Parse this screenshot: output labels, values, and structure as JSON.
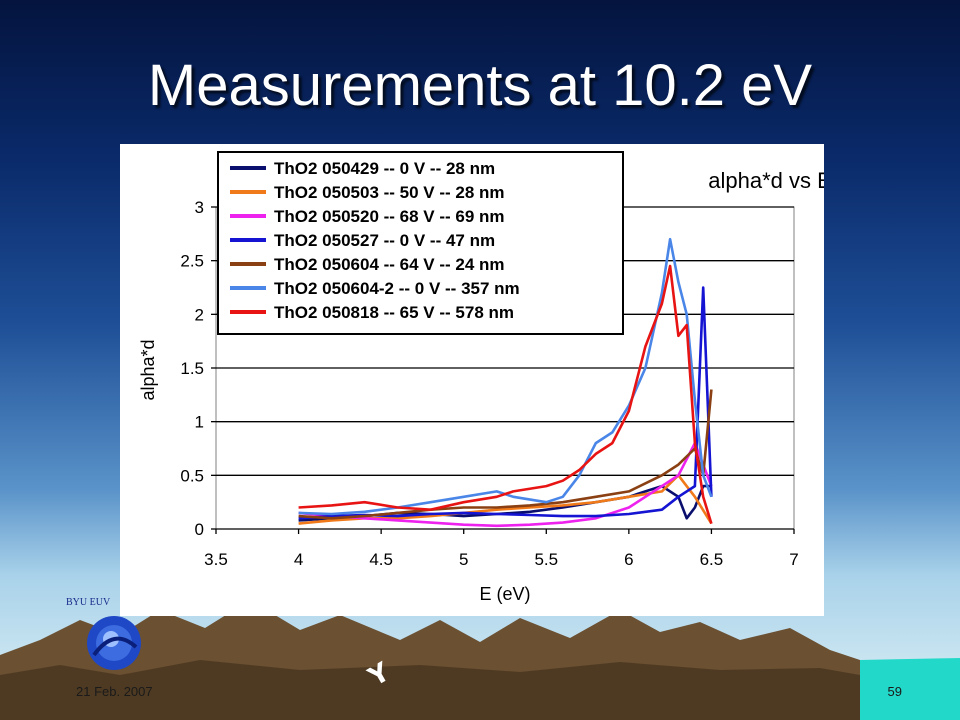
{
  "slide": {
    "title": "Measurements at 10.2 eV",
    "date": "21 Feb. 2007",
    "page_number": "59",
    "logo_text": "BYU EUV"
  },
  "chart_data": {
    "type": "line",
    "title": "alpha*d vs E",
    "xlabel": "E (eV)",
    "ylabel": "alpha*d",
    "xlim": [
      3.5,
      7
    ],
    "ylim": [
      0,
      3
    ],
    "xticks": [
      "3.5",
      "4",
      "4.5",
      "5",
      "5.5",
      "6",
      "6.5",
      "7"
    ],
    "yticks": [
      "0",
      "0.5",
      "1",
      "1.5",
      "2",
      "2.5",
      "3"
    ],
    "grid": "horizontal",
    "legend_placement": "top-left",
    "series": [
      {
        "name": "ThO2 050429 -- 0 V -- 28 nm",
        "color": "#0a0f6e",
        "x": [
          4.0,
          4.2,
          4.4,
          4.6,
          4.8,
          5.0,
          5.2,
          5.4,
          5.6,
          5.8,
          6.0,
          6.1,
          6.2,
          6.3,
          6.35,
          6.4,
          6.45,
          6.5
        ],
        "y": [
          0.08,
          0.1,
          0.12,
          0.15,
          0.14,
          0.12,
          0.14,
          0.16,
          0.2,
          0.25,
          0.3,
          0.35,
          0.4,
          0.3,
          0.1,
          0.2,
          0.4,
          0.4
        ]
      },
      {
        "name": "ThO2 050503 -- 50 V -- 28 nm",
        "color": "#f07a1a",
        "x": [
          4.0,
          4.2,
          4.4,
          4.6,
          4.8,
          5.0,
          5.2,
          5.4,
          5.6,
          5.8,
          6.0,
          6.2,
          6.3,
          6.4,
          6.5
        ],
        "y": [
          0.05,
          0.08,
          0.1,
          0.1,
          0.12,
          0.15,
          0.18,
          0.2,
          0.22,
          0.25,
          0.3,
          0.35,
          0.5,
          0.3,
          0.05
        ]
      },
      {
        "name": "ThO2 050520 -- 68 V -- 69 nm",
        "color": "#ee22ee",
        "x": [
          4.0,
          4.2,
          4.4,
          4.6,
          4.8,
          5.0,
          5.2,
          5.4,
          5.6,
          5.8,
          6.0,
          6.1,
          6.2,
          6.3,
          6.4,
          6.5
        ],
        "y": [
          0.15,
          0.12,
          0.1,
          0.08,
          0.06,
          0.04,
          0.03,
          0.04,
          0.06,
          0.1,
          0.2,
          0.3,
          0.4,
          0.5,
          0.8,
          0.4
        ]
      },
      {
        "name": "ThO2 050527 -- 0 V -- 47 nm",
        "color": "#1414d2",
        "x": [
          4.0,
          4.2,
          4.4,
          4.6,
          4.8,
          5.0,
          5.2,
          5.4,
          5.6,
          5.8,
          6.0,
          6.2,
          6.3,
          6.4,
          6.45,
          6.5
        ],
        "y": [
          0.1,
          0.12,
          0.13,
          0.12,
          0.14,
          0.15,
          0.14,
          0.13,
          0.12,
          0.12,
          0.14,
          0.18,
          0.3,
          0.4,
          2.25,
          0.3
        ]
      },
      {
        "name": "ThO2 050604 -- 64 V -- 24 nm",
        "color": "#8a4012",
        "x": [
          4.0,
          4.2,
          4.4,
          4.6,
          4.8,
          5.0,
          5.2,
          5.4,
          5.6,
          5.8,
          6.0,
          6.2,
          6.3,
          6.4,
          6.45,
          6.5
        ],
        "y": [
          0.12,
          0.1,
          0.12,
          0.15,
          0.18,
          0.2,
          0.2,
          0.22,
          0.25,
          0.3,
          0.35,
          0.5,
          0.6,
          0.75,
          0.5,
          1.3
        ]
      },
      {
        "name": "ThO2 050604-2 -- 0 V -- 357 nm",
        "color": "#4a86e8",
        "x": [
          4.0,
          4.2,
          4.4,
          4.6,
          4.8,
          5.0,
          5.2,
          5.3,
          5.5,
          5.6,
          5.7,
          5.8,
          5.9,
          6.0,
          6.1,
          6.2,
          6.25,
          6.3,
          6.35,
          6.4,
          6.45,
          6.5
        ],
        "y": [
          0.15,
          0.14,
          0.16,
          0.2,
          0.25,
          0.3,
          0.35,
          0.3,
          0.25,
          0.3,
          0.5,
          0.8,
          0.9,
          1.15,
          1.5,
          2.2,
          2.7,
          2.3,
          2.0,
          1.2,
          0.5,
          0.3
        ]
      },
      {
        "name": "ThO2 050818 -- 65 V -- 578 nm",
        "color": "#e81414",
        "x": [
          4.0,
          4.2,
          4.4,
          4.6,
          4.8,
          5.0,
          5.2,
          5.3,
          5.5,
          5.6,
          5.7,
          5.8,
          5.9,
          6.0,
          6.1,
          6.2,
          6.25,
          6.3,
          6.35,
          6.4,
          6.45,
          6.5
        ],
        "y": [
          0.2,
          0.22,
          0.25,
          0.2,
          0.18,
          0.25,
          0.3,
          0.35,
          0.4,
          0.45,
          0.55,
          0.7,
          0.8,
          1.1,
          1.7,
          2.1,
          2.45,
          1.8,
          1.9,
          0.8,
          0.3,
          0.05
        ]
      }
    ]
  }
}
